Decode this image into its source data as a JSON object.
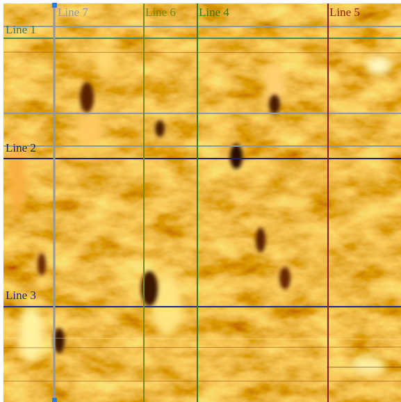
{
  "lines": [
    {
      "label": "Line 1"
    },
    {
      "label": "Line 2"
    },
    {
      "label": "Line 3"
    },
    {
      "label": "Line 4"
    },
    {
      "label": "Line 5"
    },
    {
      "label": "Line 6"
    },
    {
      "label": "Line 7"
    }
  ]
}
